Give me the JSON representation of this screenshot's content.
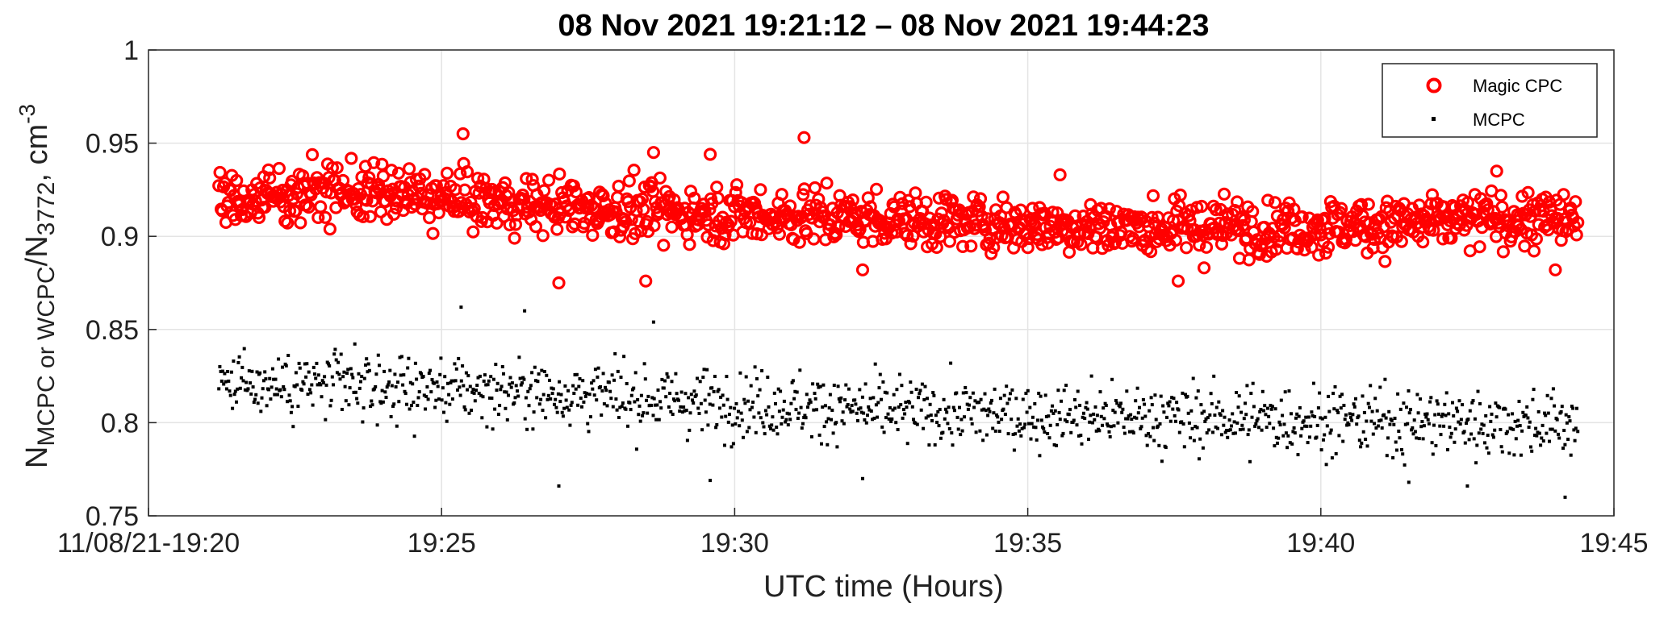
{
  "chart_data": {
    "type": "scatter",
    "title": "08 Nov 2021 19:21:12 – 08 Nov 2021 19:44:23",
    "xlabel": "UTC time (Hours)",
    "ylabel": {
      "base": "N",
      "sub1": "MCPC or WCPC",
      "sep": "/N",
      "sub2": "3772",
      "unit": ", cm",
      "sup": "-3"
    },
    "xlim": [
      "19:20",
      "19:45"
    ],
    "ylim": [
      0.75,
      1.0
    ],
    "xtick_labels": [
      "11/08/21-19:20",
      "19:25",
      "19:30",
      "19:35",
      "19:40",
      "19:45"
    ],
    "ytick_labels": [
      "0.75",
      "0.8",
      "0.85",
      "0.9",
      "0.95",
      "1"
    ],
    "grid": true,
    "legend_position": "top-right",
    "colors": {
      "magic": "#ff0000",
      "mcpc": "#000000"
    },
    "series": [
      {
        "name": "Magic CPC",
        "marker": "open-circle",
        "x_start": "19:21:12",
        "x_end": "19:44:23",
        "trend": [
          [
            "19:21:12",
            0.918
          ],
          [
            "19:23:00",
            0.925
          ],
          [
            "19:25:00",
            0.92
          ],
          [
            "19:27:00",
            0.916
          ],
          [
            "19:29:00",
            0.913
          ],
          [
            "19:31:00",
            0.911
          ],
          [
            "19:33:00",
            0.909
          ],
          [
            "19:35:00",
            0.906
          ],
          [
            "19:37:00",
            0.905
          ],
          [
            "19:39:00",
            0.905
          ],
          [
            "19:41:00",
            0.906
          ],
          [
            "19:43:00",
            0.909
          ],
          [
            "19:44:23",
            0.909
          ]
        ],
        "outliers": [
          [
            "19:25:22",
            0.955
          ],
          [
            "19:28:37",
            0.945
          ],
          [
            "19:29:35",
            0.944
          ],
          [
            "19:31:11",
            0.953
          ],
          [
            "19:27:00",
            0.875
          ],
          [
            "19:28:29",
            0.876
          ],
          [
            "19:32:11",
            0.882
          ],
          [
            "19:35:33",
            0.933
          ],
          [
            "19:37:34",
            0.876
          ],
          [
            "19:43:00",
            0.935
          ],
          [
            "19:44:00",
            0.882
          ]
        ]
      },
      {
        "name": "MCPC",
        "marker": "point",
        "x_start": "19:21:12",
        "x_end": "19:44:23",
        "trend": [
          [
            "19:21:12",
            0.822
          ],
          [
            "19:23:00",
            0.82
          ],
          [
            "19:25:00",
            0.818
          ],
          [
            "19:27:00",
            0.816
          ],
          [
            "19:29:00",
            0.812
          ],
          [
            "19:31:00",
            0.809
          ],
          [
            "19:33:00",
            0.806
          ],
          [
            "19:35:00",
            0.804
          ],
          [
            "19:37:00",
            0.803
          ],
          [
            "19:39:00",
            0.802
          ],
          [
            "19:41:00",
            0.801
          ],
          [
            "19:43:00",
            0.8
          ],
          [
            "19:44:23",
            0.8
          ]
        ],
        "outliers": [
          [
            "19:25:20",
            0.862
          ],
          [
            "19:26:25",
            0.86
          ],
          [
            "19:28:37",
            0.854
          ],
          [
            "19:27:00",
            0.766
          ],
          [
            "19:29:35",
            0.769
          ],
          [
            "19:32:11",
            0.77
          ],
          [
            "19:44:10",
            0.76
          ],
          [
            "19:41:30",
            0.768
          ],
          [
            "19:42:30",
            0.766
          ]
        ]
      }
    ]
  }
}
